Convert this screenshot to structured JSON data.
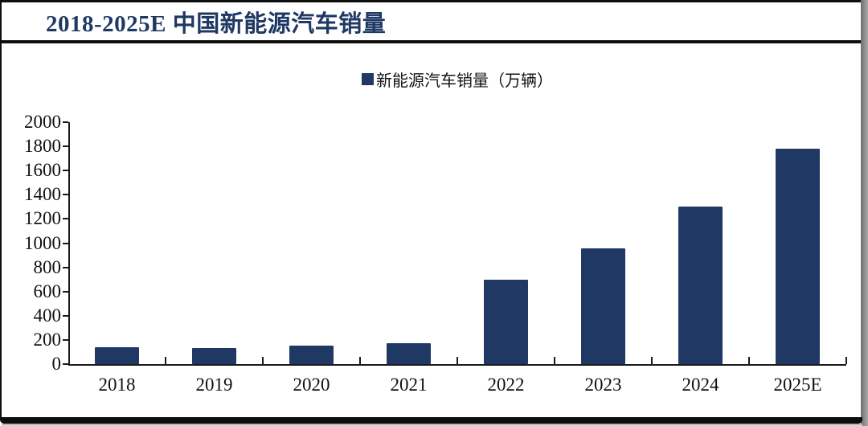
{
  "title": "2018-2025E 中国新能源汽车销量",
  "legend": {
    "label": "新能源汽车销量（万辆）"
  },
  "colors": {
    "bar": "#1F3864",
    "title": "#1F3864",
    "axis": "#1a1a1a",
    "frame": "#0f0f0f"
  },
  "chart_data": {
    "type": "bar",
    "title": "2018-2025E 中国新能源汽车销量",
    "series_name": "新能源汽车销量（万辆）",
    "categories": [
      "2018",
      "2019",
      "2020",
      "2021",
      "2022",
      "2023",
      "2024",
      "2025E"
    ],
    "values": [
      140,
      130,
      150,
      170,
      700,
      960,
      1300,
      1780
    ],
    "xlabel": "",
    "ylabel": "",
    "ylim": [
      0,
      2000
    ],
    "ytick_step": 200,
    "y_ticks": [
      0,
      200,
      400,
      600,
      800,
      1000,
      1200,
      1400,
      1600,
      1800,
      2000
    ],
    "grid": false,
    "legend_position": "top-center",
    "bar_color": "#1F3864"
  }
}
